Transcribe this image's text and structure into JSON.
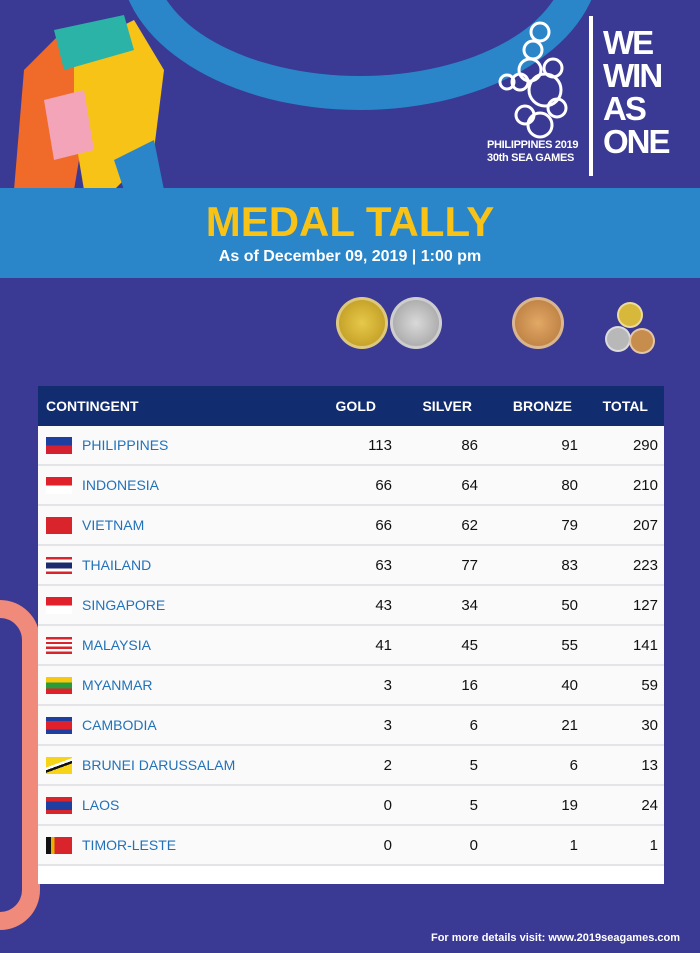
{
  "logo": {
    "line1": "PHILIPPINES 2019",
    "line2": "30th SEA GAMES"
  },
  "slogan": [
    "WE",
    "WIN",
    "AS",
    "ONE"
  ],
  "header": {
    "title": "MEDAL TALLY",
    "subtitle": "As of December 09, 2019 | 1:00 pm"
  },
  "icons": [
    "gold-medal",
    "silver-medal",
    "bronze-medal",
    "total-medals"
  ],
  "colors": {
    "background": "#3a3994",
    "banner": "#2a86c9",
    "title": "#f8c316",
    "table_header": "#112c6f",
    "country": "#2272b9"
  },
  "table": {
    "columns": [
      "CONTINGENT",
      "GOLD",
      "SILVER",
      "BRONZE",
      "TOTAL"
    ],
    "rows": [
      {
        "country": "PHILIPPINES",
        "gold": "113",
        "silver": "86",
        "bronze": "91",
        "total": "290"
      },
      {
        "country": "INDONESIA",
        "gold": "66",
        "silver": "64",
        "bronze": "80",
        "total": "210"
      },
      {
        "country": "VIETNAM",
        "gold": "66",
        "silver": "62",
        "bronze": "79",
        "total": "207"
      },
      {
        "country": "THAILAND",
        "gold": "63",
        "silver": "77",
        "bronze": "83",
        "total": "223"
      },
      {
        "country": "SINGAPORE",
        "gold": "43",
        "silver": "34",
        "bronze": "50",
        "total": "127"
      },
      {
        "country": "MALAYSIA",
        "gold": "41",
        "silver": "45",
        "bronze": "55",
        "total": "141"
      },
      {
        "country": "MYANMAR",
        "gold": "3",
        "silver": "16",
        "bronze": "40",
        "total": "59"
      },
      {
        "country": "CAMBODIA",
        "gold": "3",
        "silver": "6",
        "bronze": "21",
        "total": "30"
      },
      {
        "country": "BRUNEI DARUSSALAM",
        "gold": "2",
        "silver": "5",
        "bronze": "6",
        "total": "13"
      },
      {
        "country": "LAOS",
        "gold": "0",
        "silver": "5",
        "bronze": "19",
        "total": "24"
      },
      {
        "country": "TIMOR-LESTE",
        "gold": "0",
        "silver": "0",
        "bronze": "1",
        "total": "1"
      }
    ]
  },
  "footer": "For more details visit: www.2019seagames.com"
}
